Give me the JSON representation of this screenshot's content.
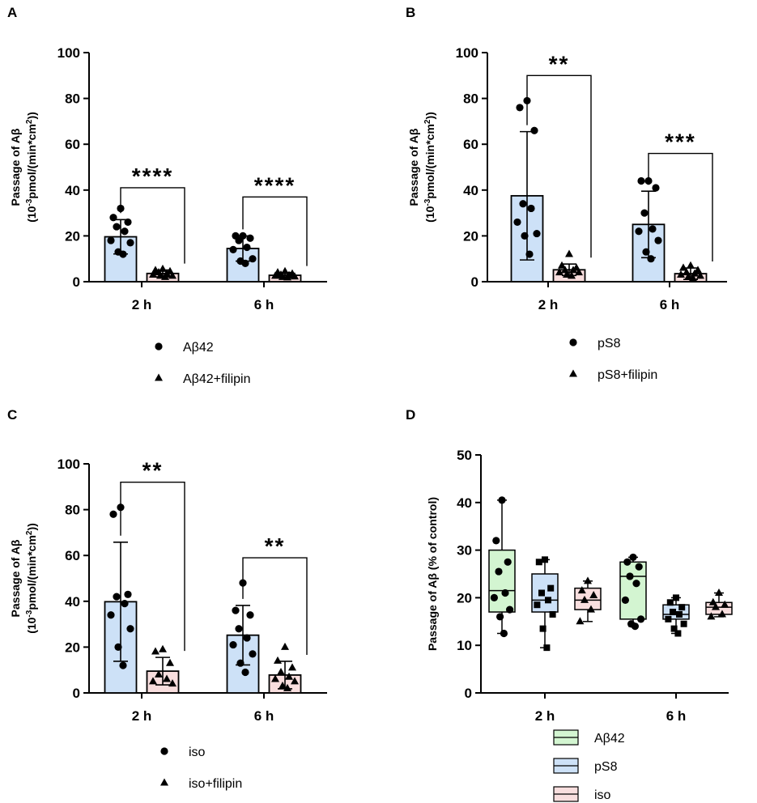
{
  "colors": {
    "blue_fill": "#cde1f7",
    "green_fill": "#d3f5d1",
    "pink_fill": "#f8dede",
    "axis": "#000000"
  },
  "chart_data": [
    {
      "panel": "A",
      "type": "bar",
      "ylabel_line1": "Passage of Aβ",
      "ylabel_line2_prefix": "(10",
      "ylabel_sup1": "-3",
      "ylabel_mid": "pmol/(min*cm",
      "ylabel_sup2": "2",
      "ylabel_suffix": "))",
      "ylim": [
        0,
        100
      ],
      "yticks": [
        0,
        20,
        40,
        60,
        80,
        100
      ],
      "categories": [
        "2 h",
        "6 h"
      ],
      "series": [
        {
          "name": "Aβ42",
          "marker": "circle",
          "fill": "blue",
          "means": [
            19.6,
            14.5
          ],
          "sd": [
            7.5,
            5.5
          ],
          "points": [
            [
              32,
              28,
              26,
              24,
              22,
              18,
              17,
              13,
              12
            ],
            [
              20,
              20,
              19,
              18,
              15,
              14,
              10,
              9,
              8
            ]
          ]
        },
        {
          "name": "Aβ42+filipin",
          "marker": "triangle",
          "fill": "pink",
          "means": [
            3.6,
            2.8
          ],
          "sd": [
            1.5,
            1.2
          ],
          "points": [
            [
              5.5,
              5,
              4.5,
              4,
              3.5,
              3,
              2.5,
              2.5,
              2
            ],
            [
              4.5,
              4,
              3.5,
              3,
              2.8,
              2.5,
              2.2,
              2,
              1.8
            ]
          ]
        }
      ],
      "significance": [
        {
          "category": 0,
          "label": "****",
          "y": 41
        },
        {
          "category": 1,
          "label": "****",
          "y": 37
        }
      ]
    },
    {
      "panel": "B",
      "type": "bar",
      "ylabel_line1": "Passage of Aβ",
      "ylabel_line2_prefix": "(10",
      "ylabel_sup1": "-3",
      "ylabel_mid": "pmol/(min*cm",
      "ylabel_sup2": "2",
      "ylabel_suffix": "))",
      "ylim": [
        0,
        100
      ],
      "yticks": [
        0,
        20,
        40,
        60,
        80,
        100
      ],
      "categories": [
        "2 h",
        "6 h"
      ],
      "series": [
        {
          "name": "pS8",
          "marker": "circle",
          "fill": "blue",
          "means": [
            37.5,
            25
          ],
          "sd": [
            28,
            14.5
          ],
          "points": [
            [
              79,
              76,
              66,
              34,
              32,
              26,
              21,
              20,
              12
            ],
            [
              44,
              44,
              41,
              30,
              23,
              22,
              18,
              13,
              10
            ]
          ]
        },
        {
          "name": "pS8+filipin",
          "marker": "triangle",
          "fill": "pink",
          "means": [
            5.2,
            3.5
          ],
          "sd": [
            2.5,
            2.5
          ],
          "points": [
            [
              12,
              7,
              6,
              5,
              5,
              4,
              4,
              3,
              2.5
            ],
            [
              7,
              6,
              5,
              4,
              3.5,
              3,
              2.5,
              2,
              1.5
            ]
          ]
        }
      ],
      "significance": [
        {
          "category": 0,
          "label": "**",
          "y": 90
        },
        {
          "category": 1,
          "label": "***",
          "y": 56
        }
      ]
    },
    {
      "panel": "C",
      "type": "bar",
      "ylabel_line1": "Passage of Aβ",
      "ylabel_line2_prefix": "(10",
      "ylabel_sup1": "-3",
      "ylabel_mid": "pmol/(min*cm",
      "ylabel_sup2": "2",
      "ylabel_suffix": "))",
      "ylim": [
        0,
        100
      ],
      "yticks": [
        0,
        20,
        40,
        60,
        80,
        100
      ],
      "categories": [
        "2 h",
        "6 h"
      ],
      "series": [
        {
          "name": "iso",
          "marker": "circle",
          "fill": "blue",
          "means": [
            39.8,
            25.2
          ],
          "sd": [
            26,
            13
          ],
          "points": [
            [
              81,
              78,
              43,
              42,
              39,
              34,
              28,
              20,
              12
            ],
            [
              48,
              36,
              34,
              28,
              24,
              21,
              17,
              13,
              9
            ]
          ]
        },
        {
          "name": "iso+filipin",
          "marker": "triangle",
          "fill": "pink",
          "means": [
            9.5,
            7.8
          ],
          "sd": [
            6,
            6
          ],
          "points": [
            [
              19,
              18,
              13,
              8,
              6,
              5,
              4
            ],
            [
              20,
              14,
              11,
              9,
              7,
              6,
              5,
              3,
              2
            ]
          ]
        }
      ],
      "significance": [
        {
          "category": 0,
          "label": "**",
          "y": 92
        },
        {
          "category": 1,
          "label": "**",
          "y": 59
        }
      ]
    },
    {
      "panel": "D",
      "type": "box",
      "ylabel": "Passage of Aβ (% of control)",
      "ylim": [
        0,
        50
      ],
      "yticks": [
        0,
        10,
        20,
        30,
        40,
        50
      ],
      "categories": [
        "2 h",
        "6 h"
      ],
      "series": [
        {
          "name": "Aβ42",
          "marker": "circle",
          "fill": "green",
          "boxes": [
            {
              "min": 12.5,
              "q1": 17,
              "median": 21.5,
              "q3": 30,
              "max": 40.5,
              "points": [
                40.5,
                32,
                27.5,
                25.5,
                21,
                20,
                17.5,
                16,
                12.5
              ]
            },
            {
              "min": 14,
              "q1": 15.5,
              "median": 24.5,
              "q3": 27.5,
              "max": 28.5,
              "points": [
                28.5,
                27.5,
                26.5,
                24.5,
                23,
                19.5,
                15.5,
                14.5,
                14
              ]
            }
          ]
        },
        {
          "name": "pS8",
          "marker": "square",
          "fill": "blue",
          "boxes": [
            {
              "min": 9.5,
              "q1": 17,
              "median": 19.5,
              "q3": 25,
              "max": 28,
              "points": [
                28,
                27.5,
                22,
                21,
                19.5,
                18.5,
                16.5,
                13.5,
                9.5
              ]
            },
            {
              "min": 12.5,
              "q1": 15.5,
              "median": 16.5,
              "q3": 18.5,
              "max": 20,
              "points": [
                20,
                19,
                18,
                17,
                16.5,
                15.5,
                14.5,
                13.5,
                12.5
              ]
            }
          ]
        },
        {
          "name": "iso",
          "marker": "triangle",
          "fill": "pink",
          "boxes": [
            {
              "min": 15,
              "q1": 17.5,
              "median": 19.5,
              "q3": 22,
              "max": 23.5,
              "points": [
                23.5,
                21.5,
                20.5,
                19.5,
                17.5,
                15
              ]
            },
            {
              "min": 16,
              "q1": 16.5,
              "median": 18,
              "q3": 19,
              "max": 21,
              "points": [
                21,
                19,
                18.5,
                18,
                16.5,
                16
              ]
            }
          ]
        }
      ]
    }
  ]
}
